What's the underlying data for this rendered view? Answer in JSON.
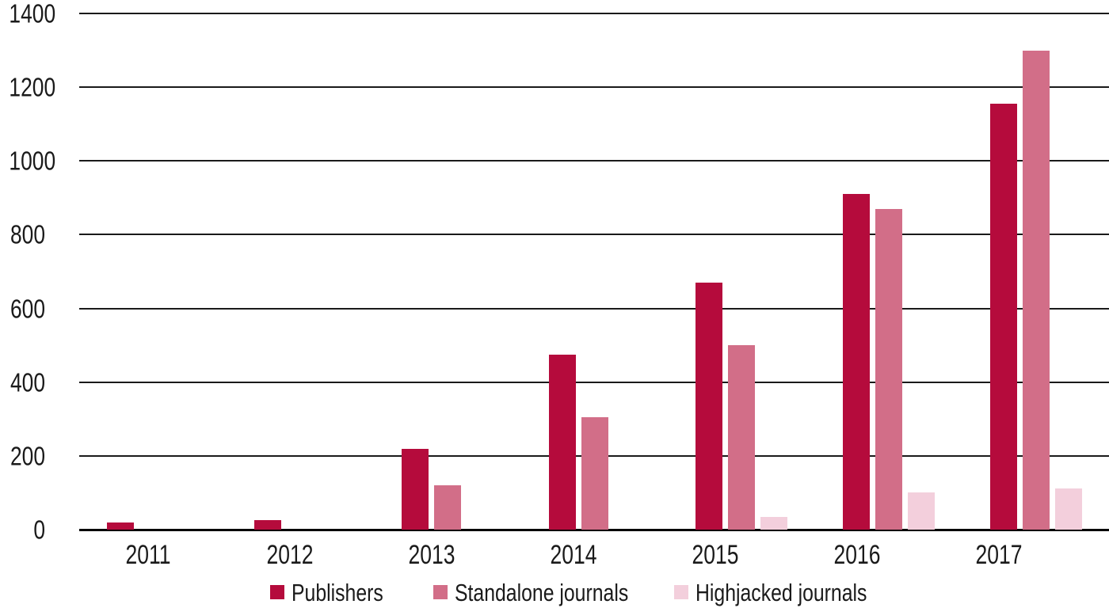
{
  "chart_data": {
    "type": "bar",
    "title": "",
    "xlabel": "",
    "ylabel": "",
    "categories": [
      "2011",
      "2012",
      "2013",
      "2014",
      "2015",
      "2016",
      "2017"
    ],
    "series": [
      {
        "name": "Publishers",
        "color": "#b50b3c",
        "values": [
          20,
          25,
          220,
          475,
          670,
          910,
          1155
        ]
      },
      {
        "name": "Standalone journals",
        "color": "#d26e88",
        "values": [
          0,
          0,
          120,
          305,
          500,
          870,
          1300
        ]
      },
      {
        "name": "Highjacked journals",
        "color": "#f3cfdc",
        "values": [
          0,
          0,
          0,
          0,
          35,
          100,
          112
        ]
      }
    ],
    "ylim": [
      0,
      1400
    ],
    "yticks": [
      0,
      200,
      400,
      600,
      800,
      1000,
      1200,
      1400
    ],
    "grid": "horizontal",
    "grid_color": "#1a1a1a",
    "axis_color": "#000000",
    "text_color": "#1a1a1a",
    "background_color": "#ffffff",
    "legend_position": "bottom"
  }
}
